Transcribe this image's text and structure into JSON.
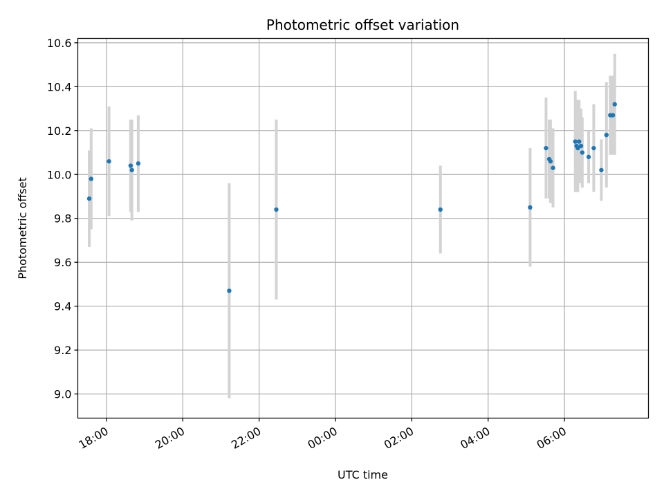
{
  "chart_data": {
    "type": "scatter",
    "title": "Photometric offset variation",
    "xlabel": "UTC time",
    "ylabel": "Photometric offset",
    "x_unit": "UTC time (HH:MM)",
    "xlim": [
      "17:15",
      "08:12"
    ],
    "ylim": [
      8.89,
      10.62
    ],
    "grid": true,
    "x_ticks": [
      "18:00",
      "20:00",
      "22:00",
      "00:00",
      "02:00",
      "04:00",
      "06:00"
    ],
    "y_ticks": [
      "9.0",
      "9.2",
      "9.4",
      "9.6",
      "9.8",
      "10.0",
      "10.2",
      "10.4",
      "10.6"
    ],
    "y_tick_values": [
      9.0,
      9.2,
      9.4,
      9.6,
      9.8,
      10.0,
      10.2,
      10.4,
      10.6
    ],
    "colors": {
      "marker": "#1f77b4",
      "errorbar": "#d3d3d3",
      "grid": "#b0b0b0",
      "axes": "#000000"
    },
    "points": [
      {
        "t": "17:33",
        "y": 9.89,
        "err": 0.22
      },
      {
        "t": "17:36",
        "y": 9.98,
        "err": 0.23
      },
      {
        "t": "18:04",
        "y": 10.06,
        "err": 0.25
      },
      {
        "t": "18:38",
        "y": 10.04,
        "err": 0.21
      },
      {
        "t": "18:40",
        "y": 10.02,
        "err": 0.23
      },
      {
        "t": "18:50",
        "y": 10.05,
        "err": 0.22
      },
      {
        "t": "21:13",
        "y": 9.47,
        "err": 0.49
      },
      {
        "t": "22:27",
        "y": 9.84,
        "err": 0.41
      },
      {
        "t": "02:45",
        "y": 9.84,
        "err": 0.2
      },
      {
        "t": "05:06",
        "y": 9.85,
        "err": 0.27
      },
      {
        "t": "05:31",
        "y": 10.12,
        "err": 0.23
      },
      {
        "t": "05:36",
        "y": 10.07,
        "err": 0.18
      },
      {
        "t": "05:38",
        "y": 10.06,
        "err": 0.19
      },
      {
        "t": "05:42",
        "y": 10.03,
        "err": 0.18
      },
      {
        "t": "06:17",
        "y": 10.15,
        "err": 0.23
      },
      {
        "t": "06:19",
        "y": 10.13,
        "err": 0.21
      },
      {
        "t": "06:21",
        "y": 10.12,
        "err": 0.2
      },
      {
        "t": "06:23",
        "y": 10.15,
        "err": 0.19
      },
      {
        "t": "06:26",
        "y": 10.13,
        "err": 0.17
      },
      {
        "t": "06:28",
        "y": 10.1,
        "err": 0.16
      },
      {
        "t": "06:38",
        "y": 10.08,
        "err": 0.12
      },
      {
        "t": "06:46",
        "y": 10.12,
        "err": 0.2
      },
      {
        "t": "06:58",
        "y": 10.02,
        "err": 0.14
      },
      {
        "t": "07:06",
        "y": 10.18,
        "err": 0.24
      },
      {
        "t": "07:12",
        "y": 10.27,
        "err": 0.18
      },
      {
        "t": "07:16",
        "y": 10.27,
        "err": 0.18
      },
      {
        "t": "07:19",
        "y": 10.32,
        "err": 0.23
      }
    ]
  }
}
